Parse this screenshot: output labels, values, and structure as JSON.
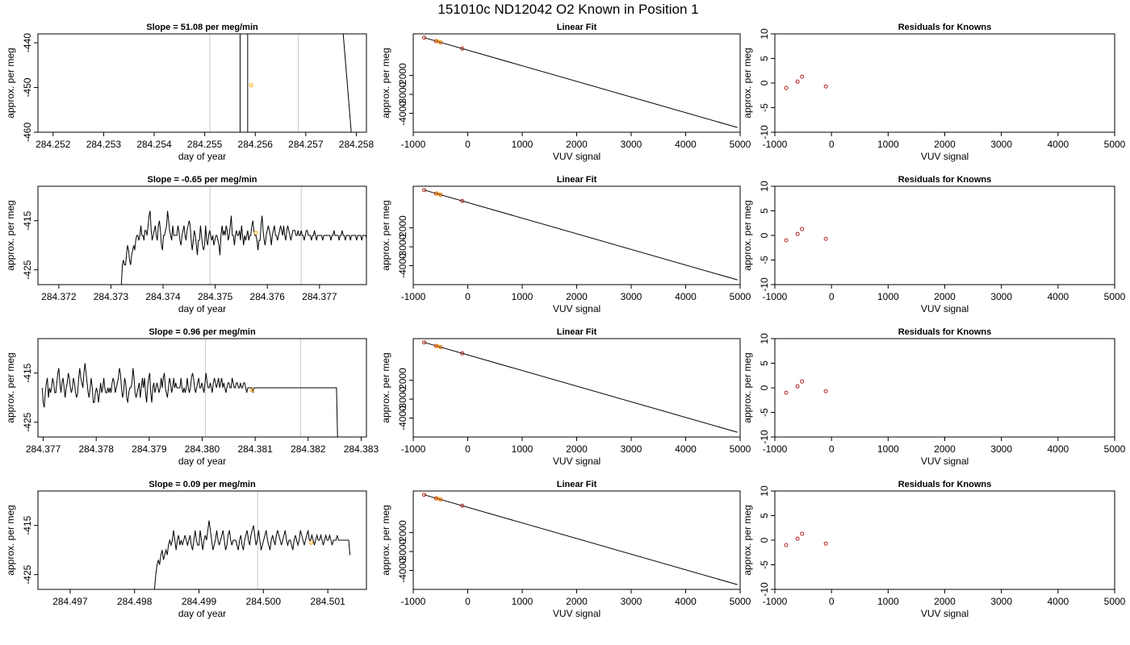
{
  "figure_title": "151010c     ND12042   O2 Known in Position  1",
  "colors": {
    "trace": "#000000",
    "marker_vline": "#000000",
    "cycle_vline": "#c8c8c8",
    "mean_point": "#ffa500",
    "known_point": "#b22222",
    "frame": "#000000"
  },
  "chart_data": [
    {
      "type": "line",
      "title": "Slope =  51.08  per meg/min",
      "xlabel": "day of year",
      "ylabel": "approx. per meg",
      "xlim": [
        284.2517,
        284.2582
      ],
      "ylim": [
        -460,
        -438
      ],
      "xticks": [
        "284.252",
        "284.253",
        "284.254",
        "284.255",
        "284.256",
        "284.257",
        "284.258"
      ],
      "yticks": [
        "-440",
        "-450",
        "-460"
      ],
      "cycle_lines_x": [
        284.2551,
        284.25685
      ],
      "marker_lines_x": [
        284.2557,
        284.25585
      ],
      "series": [
        {
          "x": [
            284.25774,
            284.2579
          ],
          "y": [
            -438,
            -460
          ]
        }
      ],
      "mean_point": {
        "x": 284.25592,
        "y": -449.5
      }
    },
    {
      "type": "line",
      "title": "Slope =  -0.65  per meg/min",
      "xlabel": "day of year",
      "ylabel": "approx. per meg",
      "xlim": [
        284.3716,
        284.3779
      ],
      "ylim": [
        -428,
        -408
      ],
      "xticks": [
        "284.372",
        "284.373",
        "284.374",
        "284.375",
        "284.376",
        "284.377"
      ],
      "yticks": [
        "-415",
        "-425"
      ],
      "cycle_lines_x": [
        284.3749,
        284.37665
      ],
      "series": [
        {
          "x_start": 284.3732,
          "x_step": 1.97e-05,
          "y": [
            -428,
            -424,
            -423,
            -424,
            -424,
            -422,
            -420,
            -421,
            -423,
            -424,
            -422,
            -421,
            -420,
            -421,
            -419,
            -418,
            -418,
            -419,
            -418,
            -416,
            -418,
            -418,
            -419,
            -417,
            -417,
            -418,
            -416,
            -414,
            -413,
            -417,
            -419,
            -418,
            -417,
            -416,
            -418,
            -419,
            -416,
            -415,
            -417,
            -420,
            -421,
            -418,
            -418,
            -417,
            -416,
            -413,
            -415,
            -417,
            -418,
            -419,
            -416,
            -418,
            -418,
            -418,
            -418,
            -416,
            -417,
            -419,
            -420,
            -418,
            -417,
            -416,
            -418,
            -419,
            -417,
            -416,
            -415,
            -416,
            -419,
            -421,
            -419,
            -417,
            -418,
            -420,
            -422,
            -419,
            -419,
            -416,
            -418,
            -420,
            -421,
            -420,
            -416,
            -419,
            -420,
            -418,
            -417,
            -418,
            -419,
            -418,
            -420,
            -419,
            -418,
            -418,
            -419,
            -420,
            -422,
            -418,
            -416,
            -418,
            -417,
            -418,
            -416,
            -417,
            -419,
            -418,
            -416,
            -414,
            -418,
            -418,
            -420,
            -418,
            -417,
            -418,
            -418,
            -417,
            -419,
            -416,
            -418,
            -420,
            -418,
            -419,
            -418,
            -417,
            -419,
            -418,
            -418,
            -416,
            -415,
            -417,
            -418,
            -418,
            -419,
            -421,
            -419,
            -419,
            -416,
            -414,
            -417,
            -419,
            -420,
            -418,
            -417,
            -416,
            -417,
            -418,
            -420,
            -418,
            -417,
            -416,
            -418,
            -418,
            -419,
            -418,
            -417,
            -416,
            -417,
            -418,
            -416,
            -418,
            -419,
            -417,
            -416,
            -417,
            -418,
            -419,
            -418,
            -417,
            -417,
            -417,
            -418,
            -418,
            -417,
            -418,
            -418,
            -417,
            -418,
            -418,
            -419,
            -418,
            -417,
            -417,
            -418,
            -418,
            -418,
            -419,
            -418,
            -418,
            -417,
            -418,
            -419,
            -418,
            -418,
            -418,
            -418,
            -418,
            -419,
            -418,
            -418,
            -418,
            -418,
            -418,
            -418,
            -418,
            -419,
            -418,
            -418,
            -417,
            -418,
            -418,
            -418,
            -418,
            -419,
            -418,
            -418,
            -417,
            -418,
            -418,
            -419,
            -418,
            -418,
            -418,
            -418,
            -419,
            -418,
            -418,
            -418,
            -418,
            -418,
            -419,
            -418,
            -418,
            -418,
            -418,
            -419,
            -418,
            -418,
            -418,
            -418,
            -419,
            -418,
            -418,
            -418,
            -418,
            -419,
            -418,
            -418,
            -418,
            -418,
            -419,
            -418,
            -418,
            -418,
            -418,
            -419,
            -418,
            -418,
            -418,
            -418,
            -419,
            -418,
            -418,
            -418,
            -418,
            -419,
            -418,
            -418,
            -418
          ]
        }
      ],
      "mean_point": {
        "x": 284.37578,
        "y": -417.5
      }
    },
    {
      "type": "line",
      "title": "Slope =  0.96  per meg/min",
      "xlabel": "day of year",
      "ylabel": "approx. per meg",
      "xlim": [
        284.3769,
        284.3831
      ],
      "ylim": [
        -428,
        -408
      ],
      "xticks": [
        "284.377",
        "284.378",
        "284.379",
        "284.380",
        "284.381",
        "284.382",
        "284.383"
      ],
      "yticks": [
        "-415",
        "-425"
      ],
      "cycle_lines_x": [
        284.38006,
        284.38186
      ],
      "series": [
        {
          "x_start": 284.37698,
          "x_step": 1.97e-05,
          "y": [
            -418,
            -421,
            -422,
            -419,
            -417,
            -416,
            -420,
            -418,
            -419,
            -418,
            -416,
            -417,
            -419,
            -419,
            -417,
            -415,
            -414,
            -417,
            -419,
            -417,
            -416,
            -418,
            -420,
            -418,
            -417,
            -415,
            -416,
            -418,
            -419,
            -418,
            -416,
            -417,
            -419,
            -420,
            -419,
            -416,
            -414,
            -416,
            -417,
            -418,
            -415,
            -413,
            -415,
            -417,
            -419,
            -420,
            -418,
            -416,
            -418,
            -421,
            -421,
            -419,
            -418,
            -419,
            -421,
            -419,
            -417,
            -419,
            -418,
            -416,
            -418,
            -419,
            -419,
            -418,
            -419,
            -418,
            -419,
            -417,
            -416,
            -417,
            -419,
            -418,
            -417,
            -416,
            -414,
            -415,
            -418,
            -420,
            -419,
            -416,
            -417,
            -420,
            -421,
            -419,
            -418,
            -418,
            -417,
            -414,
            -416,
            -419,
            -420,
            -419,
            -418,
            -417,
            -420,
            -418,
            -416,
            -418,
            -416,
            -419,
            -421,
            -418,
            -416,
            -415,
            -419,
            -421,
            -418,
            -417,
            -419,
            -418,
            -417,
            -418,
            -419,
            -418,
            -416,
            -418,
            -416,
            -415,
            -418,
            -419,
            -420,
            -418,
            -416,
            -417,
            -419,
            -418,
            -416,
            -418,
            -417,
            -418,
            -418,
            -418,
            -418,
            -416,
            -418,
            -419,
            -418,
            -419,
            -418,
            -416,
            -418,
            -419,
            -418,
            -416,
            -415,
            -416,
            -418,
            -419,
            -418,
            -417,
            -416,
            -418,
            -418,
            -417,
            -418,
            -419,
            -417,
            -415,
            -417,
            -418,
            -418,
            -417,
            -418,
            -419,
            -417,
            -416,
            -417,
            -418,
            -417,
            -416,
            -418,
            -417,
            -416,
            -418,
            -417,
            -418,
            -419,
            -418,
            -417,
            -417,
            -418,
            -418,
            -416,
            -417,
            -418,
            -418,
            -417,
            -417,
            -418,
            -418,
            -417,
            -418,
            -418,
            -417,
            -417,
            -418,
            -419,
            -418,
            -418,
            -418,
            -418,
            -418,
            -419,
            -418,
            -418,
            -418,
            -418,
            -418,
            -418,
            -418,
            -418,
            -418,
            -418,
            -418,
            -418,
            -418,
            -418,
            -418,
            -418,
            -418,
            -418,
            -418,
            -418,
            -418,
            -418,
            -418,
            -418,
            -418,
            -418,
            -418,
            -418,
            -418,
            -418,
            -418,
            -418,
            -418,
            -418,
            -418,
            -418,
            -418,
            -418,
            -418,
            -418,
            -418,
            -418,
            -418,
            -418,
            -418,
            -418,
            -418,
            -418,
            -418,
            -418,
            -418,
            -418,
            -418,
            -418,
            -418,
            -418,
            -418,
            -418,
            -418,
            -418,
            -418,
            -418,
            -418,
            -418,
            -418,
            -418,
            -418,
            -418,
            -418,
            -418,
            -418,
            -418,
            -418,
            -418,
            -418,
            -418,
            -418,
            -418,
            -418,
            -418,
            -428
          ]
        }
      ],
      "mean_point": {
        "x": 284.38094,
        "y": -418.5
      }
    },
    {
      "type": "line",
      "title": "Slope =  0.09  per meg/min",
      "xlabel": "day of year",
      "ylabel": "approx. per meg",
      "xlim": [
        284.4965,
        284.5016
      ],
      "ylim": [
        -428,
        -408
      ],
      "xticks": [
        "284.497",
        "284.498",
        "284.499",
        "284.500",
        "284.501"
      ],
      "yticks": [
        "-415",
        "-425"
      ],
      "cycle_lines_x": [
        284.49991,
        284.50162
      ],
      "series": [
        {
          "x_start": 284.49831,
          "x_step": 1.97e-05,
          "y": [
            -428,
            -425,
            -423,
            -422,
            -423,
            -421,
            -420,
            -422,
            -421,
            -420,
            -421,
            -419,
            -418,
            -419,
            -418,
            -416,
            -418,
            -420,
            -418,
            -417,
            -419,
            -418,
            -419,
            -418,
            -417,
            -418,
            -419,
            -418,
            -417,
            -419,
            -420,
            -418,
            -416,
            -418,
            -419,
            -419,
            -416,
            -418,
            -420,
            -418,
            -417,
            -418,
            -416,
            -414,
            -416,
            -418,
            -420,
            -419,
            -418,
            -416,
            -418,
            -419,
            -418,
            -417,
            -416,
            -418,
            -420,
            -419,
            -417,
            -416,
            -418,
            -419,
            -418,
            -418,
            -418,
            -419,
            -420,
            -418,
            -417,
            -419,
            -420,
            -418,
            -417,
            -416,
            -418,
            -419,
            -417,
            -416,
            -415,
            -417,
            -419,
            -418,
            -416,
            -418,
            -420,
            -419,
            -418,
            -417,
            -416,
            -418,
            -419,
            -420,
            -418,
            -417,
            -418,
            -419,
            -417,
            -416,
            -417,
            -418,
            -419,
            -418,
            -417,
            -416,
            -418,
            -419,
            -418,
            -418,
            -419,
            -420,
            -418,
            -417,
            -418,
            -419,
            -418,
            -416,
            -417,
            -418,
            -419,
            -418,
            -417,
            -416,
            -418,
            -418,
            -417,
            -418,
            -419,
            -418,
            -417,
            -418,
            -418,
            -417,
            -418,
            -419,
            -418,
            -417,
            -418,
            -418,
            -417,
            -418,
            -419,
            -418,
            -418,
            -418,
            -417,
            -418,
            -418,
            -418,
            -418,
            -418,
            -418,
            -418,
            -418,
            -418,
            -421
          ]
        }
      ],
      "mean_point": {
        "x": 284.50074,
        "y": -418.5
      }
    },
    {
      "type": "scatter",
      "title": "Linear Fit",
      "xlabel": "VUV signal",
      "ylabel": "approx. per meg",
      "xlim": [
        -1000,
        5000
      ],
      "ylim": [
        -5000,
        200
      ],
      "xticks": [
        "-1000",
        "0",
        "1000",
        "2000",
        "3000",
        "4000",
        "5000"
      ],
      "yticks": [
        "-2000",
        "-3000",
        "-4000"
      ],
      "fit_line": {
        "x": [
          -800,
          4950
        ],
        "y": [
          0,
          -4750
        ]
      },
      "points": [
        {
          "x": -800,
          "y": 0
        },
        {
          "x": -580,
          "y": -190
        },
        {
          "x": -500,
          "y": -250
        },
        {
          "x": -100,
          "y": -580
        }
      ],
      "mean_points": [
        {
          "x": -560,
          "y": -190
        },
        {
          "x": -510,
          "y": -240
        }
      ]
    },
    {
      "type": "scatter",
      "title": "Residuals for Knowns",
      "xlabel": "VUV signal",
      "ylabel": "approx. per meg",
      "xlim": [
        -1000,
        5000
      ],
      "ylim": [
        -10,
        10
      ],
      "xticks": [
        "-1000",
        "0",
        "1000",
        "2000",
        "3000",
        "4000",
        "5000"
      ],
      "yticks": [
        "10",
        "5",
        "0",
        "-5",
        "-10"
      ],
      "points": [
        {
          "x": -800,
          "y": -1.0
        },
        {
          "x": -600,
          "y": 0.3
        },
        {
          "x": -520,
          "y": 1.3
        },
        {
          "x": -100,
          "y": -0.7
        }
      ]
    }
  ]
}
